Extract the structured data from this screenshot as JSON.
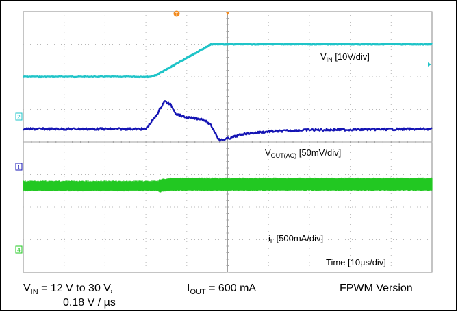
{
  "chart_data": {
    "type": "line",
    "title": "",
    "x_divisions": 10,
    "y_divisions": 8,
    "grid": true,
    "series": [
      {
        "label_main": "V",
        "label_sub": "IN",
        "label_rest": " [10V/div]",
        "color": "#1fc4c8",
        "scale": "10V/div",
        "baseline_div": 1.0,
        "x_div": [
          0,
          3.1,
          3.25,
          4.6,
          4.8,
          10
        ],
        "y_div": [
          -1.0,
          -1.0,
          -0.95,
          0.0,
          0.0,
          0.0
        ]
      },
      {
        "label_main": "V",
        "label_sub": "OUT(AC)",
        "label_rest": " [50mV/div]",
        "color": "#1414b4",
        "scale": "50mV/div",
        "baseline_div": 3.6,
        "x_div": [
          0,
          3.0,
          3.25,
          3.45,
          3.6,
          3.75,
          4.0,
          4.4,
          4.6,
          4.8,
          5.0,
          5.4,
          6.0,
          7.0,
          10
        ],
        "y_div": [
          0.0,
          0.0,
          0.4,
          0.85,
          0.75,
          0.45,
          0.35,
          0.3,
          0.1,
          -0.35,
          -0.3,
          -0.15,
          -0.08,
          -0.03,
          0.0
        ]
      },
      {
        "label_main": "i",
        "label_sub": "L",
        "label_rest": " [500mA/div]",
        "color": "#22c822",
        "scale": "500mA/div",
        "baseline_div": 5.35,
        "x_div": [
          0,
          3.3,
          3.6,
          10
        ],
        "y_div": [
          0.0,
          0.0,
          0.05,
          0.05
        ]
      }
    ],
    "time_label": "Time [10µs/div]",
    "trigger_marker": "T"
  },
  "channel_markers": [
    {
      "name": "channel-2-marker",
      "text": "2",
      "color": "#1fc4c8"
    },
    {
      "name": "channel-1-marker",
      "text": "1",
      "color": "#1414b4"
    },
    {
      "name": "channel-4-marker",
      "text": "4",
      "color": "#22c822"
    }
  ],
  "caption": {
    "vin_main": "V",
    "vin_sub": "IN",
    "vin_rest": " = 12 V to 30 V,",
    "slew": "0.18 V / µs",
    "iout_main": "I",
    "iout_sub": "OUT",
    "iout_rest": " = 600 mA",
    "version": "FPWM Version"
  }
}
